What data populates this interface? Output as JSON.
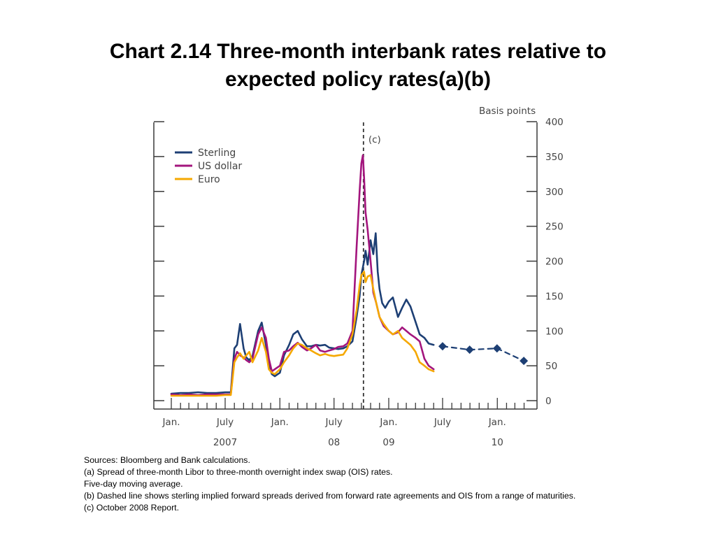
{
  "title": {
    "line1": "Chart 2.14 Three-month interbank rates relative to",
    "line2": "expected policy rates(a)(b)"
  },
  "notes": [
    "Sources:  Bloomberg and Bank calculations.",
    "(a) Spread of three-month Libor to three-month overnight index swap (OIS) rates.",
    "Five-day moving average.",
    "(b) Dashed line shows sterling implied forward spreads derived from forward rate agreements and OIS from a range of maturities.",
    "(c) October 2008 Report."
  ],
  "chart_data": {
    "type": "line",
    "title": "Chart 2.14 Three-month interbank rates relative to expected policy rates(a)(b)",
    "ylabel": "Basis points",
    "xlabel": "",
    "ylim": [
      0,
      400
    ],
    "yticks": [
      "0",
      "50",
      "100",
      "150",
      "200",
      "250",
      "300",
      "350",
      "400"
    ],
    "xlim": [
      "2007-01-01",
      "2010-04-01"
    ],
    "xtick_labels": [
      {
        "label": "Jan.",
        "date": "2007-01-01"
      },
      {
        "label": "July",
        "date": "2007-07-01"
      },
      {
        "label": "Jan.",
        "date": "2008-01-01"
      },
      {
        "label": "July",
        "date": "2008-07-01"
      },
      {
        "label": "Jan.",
        "date": "2009-01-01"
      },
      {
        "label": "July",
        "date": "2009-07-01"
      },
      {
        "label": "Jan.",
        "date": "2010-01-01"
      }
    ],
    "year_labels": [
      {
        "label": "2007",
        "date": "2007-07-01"
      },
      {
        "label": "08",
        "date": "2008-07-01"
      },
      {
        "label": "09",
        "date": "2009-01-01"
      },
      {
        "label": "10",
        "date": "2010-01-01"
      }
    ],
    "grid": false,
    "legend_position": "top-left",
    "annotation": {
      "label": "(c)",
      "date": "2008-10-08"
    },
    "series": [
      {
        "name": "Sterling",
        "color": "#1d3f74",
        "x": [
          "2007-01-01",
          "2007-02-01",
          "2007-03-01",
          "2007-04-01",
          "2007-05-01",
          "2007-06-01",
          "2007-07-01",
          "2007-07-20",
          "2007-08-01",
          "2007-08-10",
          "2007-08-20",
          "2007-09-01",
          "2007-09-10",
          "2007-09-20",
          "2007-10-01",
          "2007-10-20",
          "2007-11-01",
          "2007-11-15",
          "2007-11-25",
          "2007-12-05",
          "2007-12-15",
          "2008-01-01",
          "2008-01-15",
          "2008-02-01",
          "2008-02-15",
          "2008-03-01",
          "2008-03-15",
          "2008-04-01",
          "2008-04-15",
          "2008-05-01",
          "2008-05-15",
          "2008-06-01",
          "2008-06-15",
          "2008-07-01",
          "2008-07-15",
          "2008-08-01",
          "2008-08-15",
          "2008-09-01",
          "2008-09-15",
          "2008-09-25",
          "2008-10-01",
          "2008-10-10",
          "2008-10-15",
          "2008-10-22",
          "2008-11-01",
          "2008-11-10",
          "2008-11-18",
          "2008-11-25",
          "2008-12-01",
          "2008-12-10",
          "2008-12-20",
          "2009-01-01",
          "2009-01-15",
          "2009-02-01",
          "2009-02-15",
          "2009-03-01",
          "2009-03-15",
          "2009-04-01",
          "2009-04-15",
          "2009-05-01",
          "2009-05-15",
          "2009-06-01"
        ],
        "values": [
          10,
          11,
          11,
          12,
          11,
          11,
          12,
          12,
          75,
          80,
          110,
          75,
          62,
          58,
          64,
          100,
          112,
          80,
          50,
          38,
          35,
          40,
          65,
          80,
          95,
          100,
          88,
          78,
          78,
          80,
          79,
          80,
          76,
          75,
          74,
          75,
          78,
          85,
          120,
          150,
          180,
          200,
          215,
          195,
          230,
          210,
          240,
          185,
          160,
          140,
          133,
          142,
          148,
          120,
          133,
          145,
          135,
          113,
          95,
          90,
          82,
          80
        ]
      },
      {
        "name": "US dollar",
        "color": "#a3157d",
        "x": [
          "2007-01-01",
          "2007-02-01",
          "2007-03-01",
          "2007-04-01",
          "2007-05-01",
          "2007-06-01",
          "2007-07-01",
          "2007-07-20",
          "2007-08-01",
          "2007-08-10",
          "2007-08-20",
          "2007-09-01",
          "2007-09-10",
          "2007-09-20",
          "2007-10-01",
          "2007-10-20",
          "2007-11-01",
          "2007-11-15",
          "2007-11-25",
          "2007-12-05",
          "2007-12-15",
          "2008-01-01",
          "2008-01-15",
          "2008-02-01",
          "2008-02-15",
          "2008-03-01",
          "2008-03-15",
          "2008-04-01",
          "2008-04-15",
          "2008-05-01",
          "2008-05-15",
          "2008-06-01",
          "2008-06-15",
          "2008-07-01",
          "2008-07-15",
          "2008-08-01",
          "2008-08-15",
          "2008-09-01",
          "2008-09-15",
          "2008-09-25",
          "2008-10-01",
          "2008-10-06",
          "2008-10-10",
          "2008-10-15",
          "2008-10-22",
          "2008-11-01",
          "2008-11-10",
          "2008-11-20",
          "2008-12-01",
          "2008-12-15",
          "2009-01-01",
          "2009-01-15",
          "2009-02-01",
          "2009-02-15",
          "2009-03-01",
          "2009-03-15",
          "2009-04-01",
          "2009-04-15",
          "2009-05-01",
          "2009-05-15",
          "2009-06-01"
        ],
        "values": [
          9,
          8,
          9,
          8,
          9,
          9,
          9,
          9,
          60,
          70,
          65,
          62,
          58,
          55,
          60,
          95,
          105,
          90,
          60,
          42,
          45,
          50,
          70,
          72,
          78,
          83,
          77,
          72,
          75,
          80,
          72,
          70,
          72,
          74,
          77,
          78,
          82,
          100,
          220,
          300,
          340,
          352,
          320,
          270,
          245,
          200,
          155,
          140,
          120,
          107,
          100,
          95,
          98,
          105,
          100,
          95,
          90,
          85,
          60,
          50,
          45
        ]
      },
      {
        "name": "Euro",
        "color": "#f5a800",
        "x": [
          "2007-01-01",
          "2007-02-01",
          "2007-03-01",
          "2007-04-01",
          "2007-05-01",
          "2007-06-01",
          "2007-07-01",
          "2007-07-20",
          "2007-08-01",
          "2007-08-10",
          "2007-08-20",
          "2007-09-01",
          "2007-09-10",
          "2007-09-20",
          "2007-10-01",
          "2007-10-20",
          "2007-11-01",
          "2007-11-15",
          "2007-11-25",
          "2007-12-05",
          "2007-12-15",
          "2008-01-01",
          "2008-01-15",
          "2008-02-01",
          "2008-02-15",
          "2008-03-01",
          "2008-03-15",
          "2008-04-01",
          "2008-04-15",
          "2008-05-01",
          "2008-05-15",
          "2008-06-01",
          "2008-06-15",
          "2008-07-01",
          "2008-07-15",
          "2008-08-01",
          "2008-08-15",
          "2008-09-01",
          "2008-09-15",
          "2008-09-25",
          "2008-10-01",
          "2008-10-10",
          "2008-10-15",
          "2008-10-22",
          "2008-11-01",
          "2008-11-10",
          "2008-11-20",
          "2008-12-01",
          "2008-12-15",
          "2009-01-01",
          "2009-01-15",
          "2009-02-01",
          "2009-02-15",
          "2009-03-01",
          "2009-03-15",
          "2009-04-01",
          "2009-04-15",
          "2009-05-01",
          "2009-05-15",
          "2009-06-01"
        ],
        "values": [
          7,
          7,
          7,
          7,
          7,
          7,
          8,
          8,
          55,
          62,
          68,
          60,
          65,
          70,
          55,
          72,
          90,
          70,
          45,
          40,
          38,
          45,
          55,
          65,
          75,
          82,
          80,
          75,
          72,
          68,
          65,
          67,
          65,
          64,
          65,
          66,
          75,
          95,
          130,
          165,
          180,
          185,
          170,
          178,
          180,
          160,
          140,
          120,
          110,
          100,
          95,
          100,
          90,
          85,
          80,
          70,
          55,
          50,
          45,
          42
        ]
      },
      {
        "name": "Sterling implied forward spreads",
        "color": "#1d3f74",
        "dashed": true,
        "x": [
          "2009-07-01",
          "2009-09-30",
          "2009-12-31",
          "2010-03-31"
        ],
        "values": [
          78,
          73,
          75,
          57
        ]
      }
    ]
  }
}
